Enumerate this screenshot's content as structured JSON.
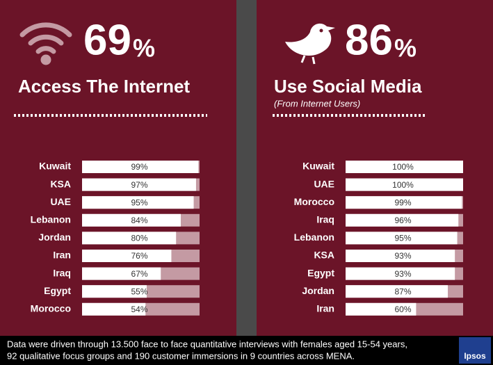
{
  "chart_data": [
    {
      "type": "bar",
      "orientation": "horizontal",
      "stat": "69",
      "stat_unit": "%",
      "title": "Access The Internet",
      "categories": [
        "Kuwait",
        "KSA",
        "UAE",
        "Lebanon",
        "Jordan",
        "Iran",
        "Iraq",
        "Egypt",
        "Morocco"
      ],
      "values": [
        99,
        97,
        95,
        84,
        80,
        76,
        67,
        55,
        54
      ],
      "value_labels": [
        "99%",
        "97%",
        "95%",
        "84%",
        "80%",
        "76%",
        "67%",
        "55%",
        "54%"
      ],
      "xlim": [
        0,
        100
      ],
      "color": "#ffffff",
      "track_color": "#c49aa3"
    },
    {
      "type": "bar",
      "orientation": "horizontal",
      "stat": "86",
      "stat_unit": "%",
      "title": "Use Social Media",
      "subtitle": "(From Internet Users)",
      "categories": [
        "Kuwait",
        "UAE",
        "Morocco",
        "Iraq",
        "Lebanon",
        "KSA",
        "Egypt",
        "Jordan",
        "Iran"
      ],
      "values": [
        100,
        100,
        99,
        96,
        95,
        93,
        93,
        87,
        60
      ],
      "value_labels": [
        "100%",
        "100%",
        "99%",
        "96%",
        "95%",
        "93%",
        "93%",
        "87%",
        "60%"
      ],
      "xlim": [
        0,
        100
      ],
      "color": "#ffffff",
      "track_color": "#c49aa3"
    }
  ],
  "footer": {
    "lines": [
      "Data were driven through 13.500 face to face quantitative interviews with females aged 15-54 years,",
      "92 qualitative focus groups and 190 customer immersions in 9 countries across MENA."
    ],
    "logo": "Ipsos"
  }
}
